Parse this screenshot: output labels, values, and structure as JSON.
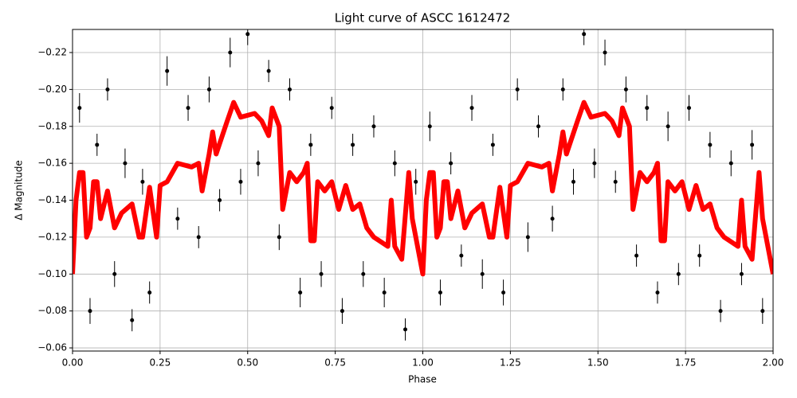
{
  "chart_data": {
    "type": "scatter",
    "title": "Light curve of ASCC 1612472",
    "x_label": "Phase",
    "y_label": "Δ Magnitude",
    "xlim": [
      0,
      2
    ],
    "ylim": [
      -0.0583,
      -0.2325
    ],
    "grid": true,
    "xticks": [
      {
        "value": 0,
        "label": "0.00"
      },
      0.25,
      {
        "value": 0.5,
        "label": "0.50"
      },
      0.75,
      {
        "value": 1,
        "label": "1.00"
      },
      1.25,
      {
        "value": 1.5,
        "label": "1.50"
      },
      1.75,
      {
        "value": 2,
        "label": "2.00"
      }
    ],
    "yticks": [
      {
        "value": -0.22,
        "label": "−0.22"
      },
      {
        "value": -0.2,
        "label": "−0.20"
      },
      {
        "value": -0.18,
        "label": "−0.18"
      },
      {
        "value": -0.16,
        "label": "−0.16"
      },
      {
        "value": -0.14,
        "label": "−0.14"
      },
      {
        "value": -0.12,
        "label": "−0.12"
      },
      {
        "value": -0.1,
        "label": "−0.10"
      },
      {
        "value": -0.08,
        "label": "−0.08"
      },
      {
        "value": -0.06,
        "label": "−0.06"
      }
    ],
    "points": {
      "color": "#000000",
      "x": [
        0.02,
        0.05,
        0.07,
        0.1,
        0.12,
        0.15,
        0.17,
        0.2,
        0.22,
        0.27,
        0.3,
        0.33,
        0.36,
        0.39,
        0.42,
        0.45,
        0.48,
        0.5,
        0.53,
        0.56,
        0.59,
        0.62,
        0.65,
        0.68,
        0.71,
        0.74,
        0.77,
        0.8,
        0.83,
        0.86,
        0.89,
        0.92,
        0.95,
        0.98,
        1.02,
        1.05,
        1.08,
        1.11,
        1.14,
        1.17,
        1.2,
        1.23,
        1.27,
        1.3,
        1.33,
        1.37,
        1.4,
        1.43,
        1.46,
        1.49,
        1.52,
        1.55,
        1.58,
        1.61,
        1.64,
        1.67,
        1.7,
        1.73,
        1.76,
        1.79,
        1.82,
        1.85,
        1.88,
        1.91,
        1.94,
        1.97
      ],
      "values": [
        -0.19,
        -0.08,
        -0.17,
        -0.2,
        -0.1,
        -0.16,
        -0.075,
        -0.15,
        -0.09,
        -0.21,
        -0.13,
        -0.19,
        -0.12,
        -0.2,
        -0.14,
        -0.22,
        -0.15,
        -0.23,
        -0.16,
        -0.21,
        -0.12,
        -0.2,
        -0.09,
        -0.17,
        -0.1,
        -0.19,
        -0.08,
        -0.17,
        -0.1,
        -0.18,
        -0.09,
        -0.16,
        -0.07,
        -0.15,
        -0.18,
        -0.09,
        -0.16,
        -0.11,
        -0.19,
        -0.1,
        -0.17,
        -0.09,
        -0.2,
        -0.12,
        -0.18,
        -0.13,
        -0.2,
        -0.15,
        -0.23,
        -0.16,
        -0.22,
        -0.15,
        -0.2,
        -0.11,
        -0.19,
        -0.09,
        -0.18,
        -0.1,
        -0.19,
        -0.11,
        -0.17,
        -0.08,
        -0.16,
        -0.1,
        -0.17,
        -0.08
      ],
      "errors": [
        0.008,
        0.007,
        0.006,
        0.006,
        0.007,
        0.008,
        0.006,
        0.007,
        0.006,
        0.008,
        0.006,
        0.007,
        0.006,
        0.007,
        0.006,
        0.008,
        0.007,
        0.006,
        0.007,
        0.006,
        0.007,
        0.006,
        0.008,
        0.006,
        0.007,
        0.006,
        0.007,
        0.006,
        0.007,
        0.006,
        0.008,
        0.007,
        0.006,
        0.007,
        0.008,
        0.007,
        0.006,
        0.006,
        0.007,
        0.008,
        0.006,
        0.007,
        0.006,
        0.008,
        0.006,
        0.007,
        0.006,
        0.007,
        0.006,
        0.008,
        0.007,
        0.006,
        0.007,
        0.006,
        0.007,
        0.006,
        0.008,
        0.006,
        0.007,
        0.006,
        0.007,
        0.006,
        0.007,
        0.006,
        0.008,
        0.007
      ]
    },
    "fit": {
      "color": "#ff0000",
      "x": [
        0,
        0.01,
        0.02,
        0.03,
        0.04,
        0.05,
        0.06,
        0.07,
        0.08,
        0.1,
        0.12,
        0.14,
        0.17,
        0.19,
        0.2,
        0.22,
        0.24,
        0.25,
        0.27,
        0.3,
        0.34,
        0.36,
        0.37,
        0.39,
        0.4,
        0.41,
        0.44,
        0.46,
        0.48,
        0.52,
        0.54,
        0.56,
        0.57,
        0.59,
        0.6,
        0.62,
        0.64,
        0.66,
        0.67,
        0.68,
        0.69,
        0.7,
        0.72,
        0.74,
        0.76,
        0.78,
        0.8,
        0.82,
        0.84,
        0.86,
        0.9,
        0.91,
        0.92,
        0.94,
        0.96,
        0.97,
        1,
        1.01,
        1.02,
        1.03,
        1.04,
        1.05,
        1.06,
        1.07,
        1.08,
        1.1,
        1.12,
        1.14,
        1.17,
        1.19,
        1.2,
        1.22,
        1.24,
        1.25,
        1.27,
        1.3,
        1.34,
        1.36,
        1.37,
        1.39,
        1.4,
        1.41,
        1.44,
        1.46,
        1.48,
        1.52,
        1.54,
        1.56,
        1.57,
        1.59,
        1.6,
        1.62,
        1.64,
        1.66,
        1.67,
        1.68,
        1.69,
        1.7,
        1.72,
        1.74,
        1.76,
        1.78,
        1.8,
        1.82,
        1.84,
        1.86,
        1.9,
        1.91,
        1.92,
        1.94,
        1.96,
        1.97,
        2
      ],
      "values": [
        -0.1,
        -0.14,
        -0.155,
        -0.155,
        -0.12,
        -0.125,
        -0.15,
        -0.15,
        -0.13,
        -0.145,
        -0.125,
        -0.133,
        -0.138,
        -0.12,
        -0.12,
        -0.147,
        -0.12,
        -0.148,
        -0.15,
        -0.16,
        -0.158,
        -0.16,
        -0.145,
        -0.165,
        -0.177,
        -0.165,
        -0.182,
        -0.193,
        -0.185,
        -0.187,
        -0.183,
        -0.175,
        -0.19,
        -0.18,
        -0.135,
        -0.155,
        -0.15,
        -0.155,
        -0.16,
        -0.118,
        -0.118,
        -0.15,
        -0.145,
        -0.15,
        -0.135,
        -0.148,
        -0.135,
        -0.138,
        -0.125,
        -0.12,
        -0.115,
        -0.14,
        -0.115,
        -0.108,
        -0.155,
        -0.13,
        -0.1,
        -0.14,
        -0.155,
        -0.155,
        -0.12,
        -0.125,
        -0.15,
        -0.15,
        -0.13,
        -0.145,
        -0.125,
        -0.133,
        -0.138,
        -0.12,
        -0.12,
        -0.147,
        -0.12,
        -0.148,
        -0.15,
        -0.16,
        -0.158,
        -0.16,
        -0.145,
        -0.165,
        -0.177,
        -0.165,
        -0.182,
        -0.193,
        -0.185,
        -0.187,
        -0.183,
        -0.175,
        -0.19,
        -0.18,
        -0.135,
        -0.155,
        -0.15,
        -0.155,
        -0.16,
        -0.118,
        -0.118,
        -0.15,
        -0.145,
        -0.15,
        -0.135,
        -0.148,
        -0.135,
        -0.138,
        -0.125,
        -0.12,
        -0.115,
        -0.14,
        -0.115,
        -0.108,
        -0.155,
        -0.13,
        -0.1
      ]
    }
  }
}
